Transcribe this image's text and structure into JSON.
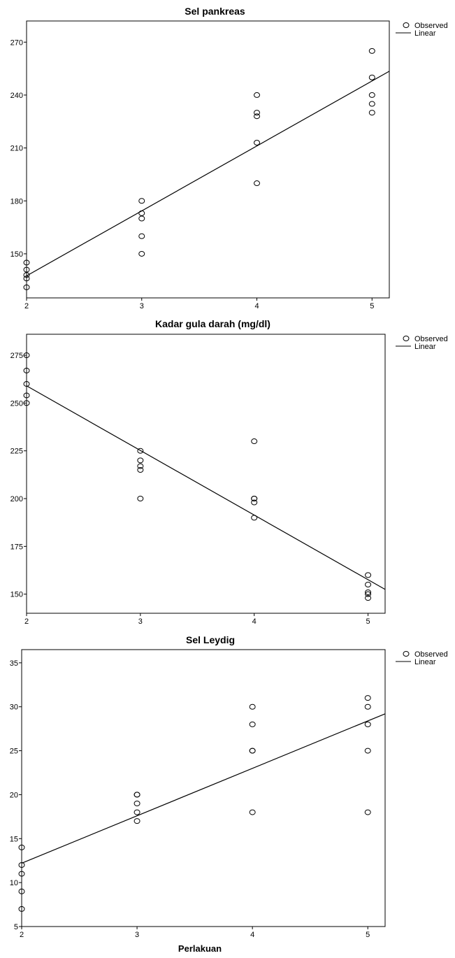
{
  "chart_data": [
    {
      "type": "scatter",
      "title": "Sel pankreas",
      "xlim": [
        2,
        5.15
      ],
      "ylim": [
        125,
        282
      ],
      "xticks": [
        2,
        3,
        4,
        5
      ],
      "yticks": [
        150,
        180,
        210,
        240,
        270
      ],
      "legend": {
        "placement": "top-right",
        "observed": "Observed",
        "linear": "Linear"
      },
      "series": [
        {
          "name": "Observed",
          "x": [
            2,
            2,
            2,
            2,
            2,
            3,
            3,
            3,
            3,
            3,
            4,
            4,
            4,
            4,
            4,
            5,
            5,
            5,
            5,
            5
          ],
          "y": [
            131,
            136,
            138,
            141,
            145,
            150,
            160,
            170,
            173,
            180,
            190,
            213,
            228,
            230,
            240,
            230,
            235,
            240,
            250,
            265
          ]
        }
      ],
      "fit": {
        "name": "Linear",
        "x": [
          2,
          5.15
        ],
        "y": [
          137.5,
          253.5
        ]
      },
      "grid": false
    },
    {
      "type": "scatter",
      "title": "Kadar gula darah (mg/dl)",
      "xlim": [
        2,
        5.15
      ],
      "ylim": [
        140,
        286
      ],
      "xticks": [
        2,
        3,
        4,
        5
      ],
      "yticks": [
        150,
        175,
        200,
        225,
        250,
        275
      ],
      "legend": {
        "placement": "top-right",
        "observed": "Observed",
        "linear": "Linear"
      },
      "series": [
        {
          "name": "Observed",
          "x": [
            2,
            2,
            2,
            2,
            2,
            3,
            3,
            3,
            3,
            3,
            4,
            4,
            4,
            4,
            4,
            5,
            5,
            5,
            5,
            5
          ],
          "y": [
            250,
            254,
            260,
            267,
            275,
            200,
            215,
            217,
            220,
            225,
            190,
            198,
            200,
            200,
            230,
            148,
            150,
            151,
            155,
            160
          ]
        }
      ],
      "fit": {
        "name": "Linear",
        "x": [
          2,
          5.15
        ],
        "y": [
          259,
          152.5
        ]
      },
      "grid": false
    },
    {
      "type": "scatter",
      "title": "Sel Leydig",
      "xlabel": "Perlakuan",
      "xlim": [
        2,
        5.15
      ],
      "ylim": [
        5,
        36.5
      ],
      "xticks": [
        2,
        3,
        4,
        5
      ],
      "yticks": [
        5,
        10,
        15,
        20,
        25,
        30,
        35
      ],
      "legend": {
        "placement": "top-right",
        "observed": "Observed",
        "linear": "Linear"
      },
      "series": [
        {
          "name": "Observed",
          "x": [
            2,
            2,
            2,
            2,
            2,
            3,
            3,
            3,
            3,
            3,
            4,
            4,
            4,
            4,
            4,
            5,
            5,
            5,
            5,
            5
          ],
          "y": [
            7,
            9,
            11,
            12,
            14,
            17,
            18,
            19,
            20,
            20,
            18,
            25,
            25,
            28,
            30,
            18,
            25,
            28,
            30,
            31
          ]
        }
      ],
      "fit": {
        "name": "Linear",
        "x": [
          2,
          5.15
        ],
        "y": [
          12.2,
          29.2
        ]
      },
      "grid": false
    }
  ]
}
